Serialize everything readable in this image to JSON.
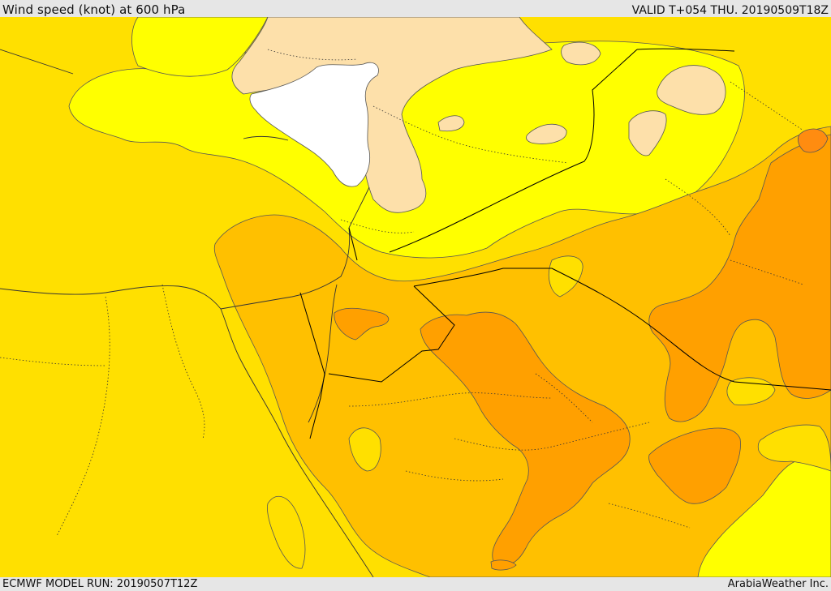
{
  "header": {
    "title": "Wind speed (knot) at 600 hPa",
    "valid": "VALID T+054 THU. 20190509T18Z"
  },
  "footer": {
    "model_run": "ECMWF MODEL RUN: 20190507T12Z",
    "credit": "ArabiaWeather Inc."
  },
  "colors": {
    "band_white": "#ffffff",
    "band_peach": "#fde0aa",
    "band_yellow": "#ffff00",
    "band_gold": "#ffe000",
    "band_amber": "#ffc000",
    "band_orange": "#ffa000",
    "band_dark_orange": "#ff8c10",
    "contour": "#555555",
    "border": "#000000"
  }
}
